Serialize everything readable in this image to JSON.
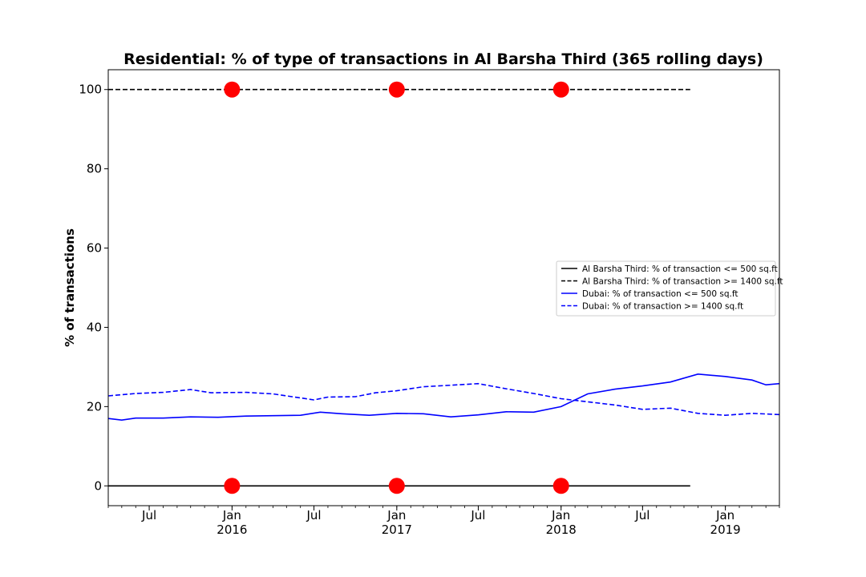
{
  "chart_data": {
    "type": "line",
    "title": "Residential: % of type of transactions in Al Barsha Third (365 rolling days)",
    "ylabel": "% of transactions",
    "xlabel": "",
    "xlim": [
      "2015-04-01",
      "2019-05-01"
    ],
    "ylim": [
      -5,
      105
    ],
    "y_ticks": [
      0,
      20,
      40,
      60,
      80,
      100
    ],
    "x_ticks": [
      {
        "date": "2015-07-01",
        "label": "Jul",
        "sub": ""
      },
      {
        "date": "2016-01-01",
        "label": "Jan",
        "sub": "2016"
      },
      {
        "date": "2016-07-01",
        "label": "Jul",
        "sub": ""
      },
      {
        "date": "2017-01-01",
        "label": "Jan",
        "sub": "2017"
      },
      {
        "date": "2017-07-01",
        "label": "Jul",
        "sub": ""
      },
      {
        "date": "2018-01-01",
        "label": "Jan",
        "sub": "2018"
      },
      {
        "date": "2018-07-01",
        "label": "Jul",
        "sub": ""
      },
      {
        "date": "2019-01-01",
        "label": "Jan",
        "sub": "2019"
      }
    ],
    "grid": false,
    "legend_position": "center-right",
    "series": [
      {
        "name": "Al Barsha Third: % of transaction <= 500 sq.ft",
        "color": "#000000",
        "dash": "solid",
        "points": [
          [
            "2015-04-01",
            0
          ],
          [
            "2018-10-15",
            0
          ]
        ]
      },
      {
        "name": "Al Barsha Third: % of transaction >= 1400 sq.ft",
        "color": "#000000",
        "dash": "dashed",
        "points": [
          [
            "2015-04-01",
            100
          ],
          [
            "2018-10-15",
            100
          ]
        ]
      },
      {
        "name": "Dubai: % of transaction <= 500 sq.ft",
        "color": "#0000ff",
        "dash": "solid",
        "points": [
          [
            "2015-04-01",
            17.0
          ],
          [
            "2015-05-01",
            16.6
          ],
          [
            "2015-06-01",
            17.1
          ],
          [
            "2015-08-01",
            17.1
          ],
          [
            "2015-10-01",
            17.4
          ],
          [
            "2015-12-01",
            17.3
          ],
          [
            "2016-02-01",
            17.6
          ],
          [
            "2016-04-01",
            17.7
          ],
          [
            "2016-06-01",
            17.8
          ],
          [
            "2016-07-15",
            18.6
          ],
          [
            "2016-09-01",
            18.2
          ],
          [
            "2016-11-01",
            17.8
          ],
          [
            "2017-01-01",
            18.3
          ],
          [
            "2017-03-01",
            18.2
          ],
          [
            "2017-05-01",
            17.4
          ],
          [
            "2017-07-01",
            17.9
          ],
          [
            "2017-09-01",
            18.7
          ],
          [
            "2017-11-01",
            18.6
          ],
          [
            "2018-01-01",
            20.0
          ],
          [
            "2018-03-01",
            23.2
          ],
          [
            "2018-05-01",
            24.4
          ],
          [
            "2018-07-01",
            25.2
          ],
          [
            "2018-09-01",
            26.2
          ],
          [
            "2018-11-01",
            28.2
          ],
          [
            "2019-01-01",
            27.6
          ],
          [
            "2019-03-01",
            26.7
          ],
          [
            "2019-04-01",
            25.5
          ],
          [
            "2019-05-01",
            25.8
          ]
        ]
      },
      {
        "name": "Dubai: % of transaction >= 1400 sq.ft",
        "color": "#0000ff",
        "dash": "dashed",
        "points": [
          [
            "2015-04-01",
            22.7
          ],
          [
            "2015-06-01",
            23.3
          ],
          [
            "2015-08-01",
            23.6
          ],
          [
            "2015-10-01",
            24.3
          ],
          [
            "2015-11-15",
            23.5
          ],
          [
            "2016-02-01",
            23.6
          ],
          [
            "2016-04-01",
            23.2
          ],
          [
            "2016-07-01",
            21.7
          ],
          [
            "2016-08-01",
            22.4
          ],
          [
            "2016-10-01",
            22.5
          ],
          [
            "2016-11-15",
            23.5
          ],
          [
            "2017-01-01",
            24.0
          ],
          [
            "2017-03-01",
            25.0
          ],
          [
            "2017-05-01",
            25.4
          ],
          [
            "2017-07-01",
            25.8
          ],
          [
            "2017-09-01",
            24.5
          ],
          [
            "2017-11-01",
            23.3
          ],
          [
            "2018-01-01",
            22.0
          ],
          [
            "2018-03-01",
            21.2
          ],
          [
            "2018-05-01",
            20.4
          ],
          [
            "2018-07-01",
            19.3
          ],
          [
            "2018-09-01",
            19.6
          ],
          [
            "2018-11-01",
            18.3
          ],
          [
            "2019-01-01",
            17.8
          ],
          [
            "2019-03-01",
            18.3
          ],
          [
            "2019-05-01",
            18.0
          ]
        ]
      },
      {
        "name": "",
        "color": "#ff0000",
        "style": "markers",
        "points": [
          [
            "2016-01-01",
            0
          ],
          [
            "2017-01-01",
            0
          ],
          [
            "2018-01-01",
            0
          ],
          [
            "2016-01-01",
            100
          ],
          [
            "2017-01-01",
            100
          ],
          [
            "2018-01-01",
            100
          ]
        ]
      }
    ]
  }
}
